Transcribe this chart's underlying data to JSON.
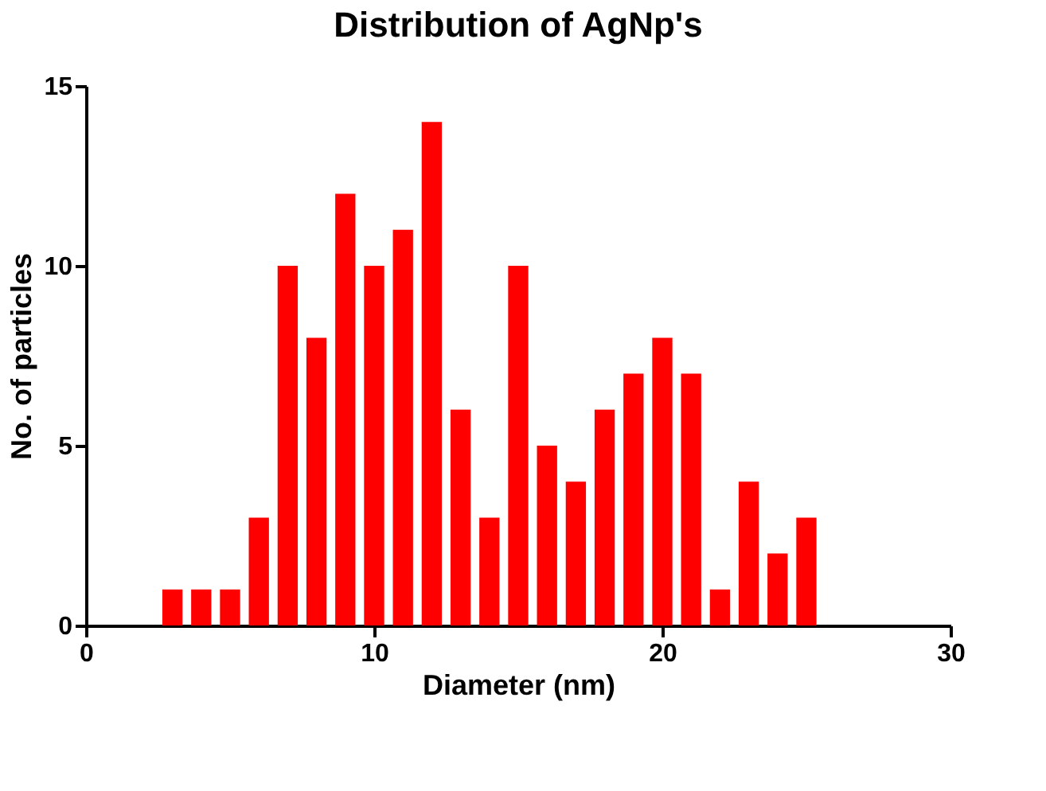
{
  "chart_data": {
    "type": "bar",
    "title": "Distribution of AgNp's",
    "xlabel": "Diameter (nm)",
    "ylabel": "No. of particles",
    "x": [
      3,
      4,
      5,
      6,
      7,
      8,
      9,
      10,
      11,
      12,
      13,
      14,
      15,
      16,
      17,
      18,
      19,
      20,
      21,
      22,
      23,
      24,
      25
    ],
    "values": [
      1,
      1,
      1,
      3,
      10,
      8,
      12,
      10,
      11,
      14,
      6,
      3,
      10,
      5,
      4,
      6,
      7,
      8,
      7,
      1,
      4,
      2,
      3
    ],
    "color": "#ff0000",
    "xlim": [
      0,
      30
    ],
    "xticks": [
      0,
      10,
      20,
      30
    ],
    "ylim": [
      0,
      15
    ],
    "yticks": [
      0,
      5,
      10,
      15
    ],
    "grid": false
  }
}
